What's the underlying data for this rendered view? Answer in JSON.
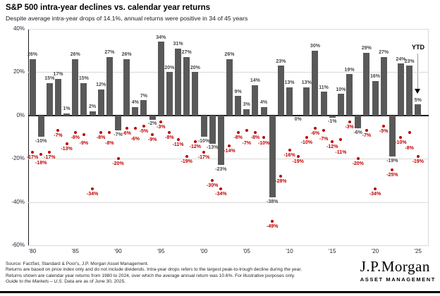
{
  "header": {
    "title": "S&P 500 intra-year declines vs. calendar year returns",
    "subtitle": "Despite average intra-year drops of 14.1%, annual returns were positive in 34 of 45 years"
  },
  "chart_data": {
    "type": "bar",
    "title": "S&P 500 intra-year declines vs. calendar year returns",
    "subtitle": "Despite average intra-year drops of 14.1%, annual returns were positive in 34 of 45 years",
    "years": [
      1980,
      1981,
      1982,
      1983,
      1984,
      1985,
      1986,
      1987,
      1988,
      1989,
      1990,
      1991,
      1992,
      1993,
      1994,
      1995,
      1996,
      1997,
      1998,
      1999,
      2000,
      2001,
      2002,
      2003,
      2004,
      2005,
      2006,
      2007,
      2008,
      2009,
      2010,
      2011,
      2012,
      2013,
      2014,
      2015,
      2016,
      2017,
      2018,
      2019,
      2020,
      2021,
      2022,
      2023,
      2024,
      2025
    ],
    "series": [
      {
        "name": "Calendar year returns",
        "type": "bar",
        "color": "#595959",
        "values": [
          26,
          -10,
          15,
          17,
          1,
          26,
          15,
          2,
          12,
          27,
          -7,
          26,
          4,
          7,
          -2,
          34,
          20,
          31,
          27,
          20,
          -10,
          -13,
          -23,
          26,
          9,
          3,
          14,
          4,
          -38,
          23,
          13,
          0,
          13,
          30,
          11,
          -1,
          10,
          19,
          -6,
          29,
          16,
          27,
          -19,
          24,
          23,
          5
        ]
      },
      {
        "name": "Intra-year declines",
        "type": "scatter",
        "color": "#c00000",
        "values": [
          -17,
          -18,
          -17,
          -7,
          -13,
          -8,
          -9,
          -34,
          -8,
          -8,
          -20,
          -6,
          -6,
          -5,
          -9,
          -3,
          -8,
          -11,
          -19,
          -12,
          -17,
          -30,
          -34,
          -14,
          -8,
          -7,
          -8,
          -10,
          -49,
          -28,
          -16,
          -19,
          -10,
          -6,
          -7,
          -12,
          -11,
          -3,
          -20,
          -7,
          -34,
          -5,
          -25,
          -10,
          -8,
          -19
        ]
      }
    ],
    "x_tick_years": [
      1980,
      1985,
      1990,
      1995,
      2000,
      2005,
      2010,
      2015,
      2020,
      2025
    ],
    "x_tick_labels": [
      "'80",
      "'85",
      "'90",
      "'95",
      "'00",
      "'05",
      "'10",
      "'15",
      "'20",
      "'25"
    ],
    "y_ticks": [
      40,
      20,
      0,
      -20,
      -40,
      -60
    ],
    "y_tick_suffix": "%",
    "ylim": [
      -60,
      40
    ],
    "grid": true,
    "legend": "none",
    "annotations": {
      "ytd_label": "YTD"
    }
  },
  "footer": {
    "line1": "Source: FactSet, Standard & Poor's, J.P. Morgan Asset Management.",
    "line2": "Returns are based on price index only and do not include dividends. Intra-year drops refers to the largest peak-to-trough decline during the year.",
    "line3": "Returns shown are calendar year returns from 1980 to 2024, over which the average annual return was 10.6%. For illustrative purposes only.",
    "line4_italic": "Guide to the Markets – U.S.",
    "line4_rest": " Data are as of June 30, 2025."
  },
  "logo": {
    "name": "J.P.Morgan",
    "subtitle": "ASSET MANAGEMENT"
  }
}
